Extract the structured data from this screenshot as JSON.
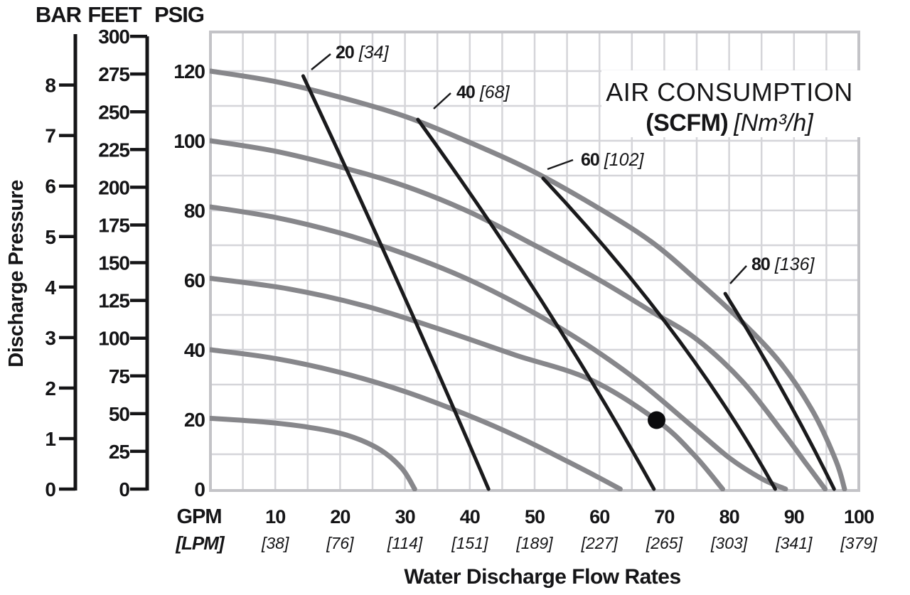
{
  "title": {
    "line1": "AIR CONSUMPTION",
    "line2_bold": "(SCFM)",
    "line2_italic": "[Nm³/h]"
  },
  "axes": {
    "y_title": "Discharge Pressure",
    "x_title": "Water Discharge Flow Rates",
    "x_unit_primary": "GPM",
    "x_unit_secondary": "[LPM]",
    "bar": {
      "label": "BAR",
      "ticks": [
        0,
        1,
        2,
        3,
        4,
        5,
        6,
        7,
        8
      ]
    },
    "feet": {
      "label": "FEET",
      "ticks": [
        0,
        25,
        50,
        75,
        100,
        125,
        150,
        175,
        200,
        225,
        250,
        275,
        300
      ]
    },
    "psig": {
      "label": "PSIG",
      "ticks": [
        0,
        20,
        40,
        60,
        80,
        100,
        120
      ]
    },
    "gpm_ticks": [
      {
        "gpm": "10",
        "lpm": "[38]"
      },
      {
        "gpm": "20",
        "lpm": "[76]"
      },
      {
        "gpm": "30",
        "lpm": "[114]"
      },
      {
        "gpm": "40",
        "lpm": "[151]"
      },
      {
        "gpm": "50",
        "lpm": "[189]"
      },
      {
        "gpm": "60",
        "lpm": "[227]"
      },
      {
        "gpm": "70",
        "lpm": "[265]"
      },
      {
        "gpm": "80",
        "lpm": "[303]"
      },
      {
        "gpm": "90",
        "lpm": "[341]"
      },
      {
        "gpm": "100",
        "lpm": "[379]"
      }
    ]
  },
  "chart_data": {
    "type": "line",
    "xlabel": "Water Discharge Flow Rates (GPM [LPM])",
    "ylabel": "Discharge Pressure (PSIG / FEET / BAR)",
    "x_range_gpm": [
      0,
      100
    ],
    "y_range_psig": [
      0,
      131
    ],
    "grid": {
      "x_step_gpm": 5,
      "y_step_psig": 10
    },
    "pump_curves": [
      {
        "name": "120 PSIG curve",
        "shutoff_psig": 120,
        "points": [
          [
            0,
            120
          ],
          [
            10,
            117
          ],
          [
            20,
            112.5
          ],
          [
            30,
            107
          ],
          [
            40,
            99.5
          ],
          [
            50,
            91
          ],
          [
            60,
            80.5
          ],
          [
            68,
            71
          ],
          [
            75,
            60
          ],
          [
            82,
            48
          ],
          [
            88,
            36
          ],
          [
            93,
            22
          ],
          [
            96.5,
            8
          ],
          [
            97.8,
            0
          ]
        ]
      },
      {
        "name": "100 PSIG curve",
        "shutoff_psig": 100,
        "points": [
          [
            0,
            100
          ],
          [
            10,
            97
          ],
          [
            20,
            92.5
          ],
          [
            30,
            87
          ],
          [
            40,
            79.5
          ],
          [
            50,
            70
          ],
          [
            60,
            60
          ],
          [
            68,
            51
          ],
          [
            75,
            43
          ],
          [
            82,
            31
          ],
          [
            88,
            17
          ],
          [
            92,
            7
          ],
          [
            94.8,
            0
          ]
        ]
      },
      {
        "name": "80 PSIG curve",
        "shutoff_psig": 80,
        "points": [
          [
            0,
            81
          ],
          [
            10,
            78
          ],
          [
            20,
            73.5
          ],
          [
            30,
            67.5
          ],
          [
            40,
            60
          ],
          [
            50,
            50.5
          ],
          [
            58,
            41.5
          ],
          [
            66,
            31
          ],
          [
            74,
            18.5
          ],
          [
            80,
            9
          ],
          [
            85,
            3
          ],
          [
            88.7,
            0
          ]
        ]
      },
      {
        "name": "60 PSIG curve",
        "shutoff_psig": 60,
        "points": [
          [
            0,
            60.5
          ],
          [
            12,
            57.5
          ],
          [
            24,
            52.5
          ],
          [
            36,
            45.5
          ],
          [
            47,
            38.5
          ],
          [
            58.5,
            31.5
          ],
          [
            68.8,
            19.8
          ],
          [
            74.5,
            10
          ],
          [
            79,
            0
          ]
        ]
      },
      {
        "name": "40 PSIG curve",
        "shutoff_psig": 40,
        "points": [
          [
            0,
            40
          ],
          [
            10,
            37.5
          ],
          [
            20,
            33.5
          ],
          [
            30,
            28
          ],
          [
            40,
            21
          ],
          [
            48,
            14.5
          ],
          [
            55,
            8
          ],
          [
            60,
            3.2
          ],
          [
            63.2,
            0
          ]
        ]
      },
      {
        "name": "20 PSIG curve",
        "shutoff_psig": 20,
        "points": [
          [
            0,
            20.3
          ],
          [
            8,
            19.3
          ],
          [
            15,
            17.8
          ],
          [
            21,
            15.5
          ],
          [
            26,
            11.5
          ],
          [
            29.5,
            6
          ],
          [
            31.5,
            0
          ]
        ]
      }
    ],
    "air_lines": [
      {
        "scfm": "20",
        "nm3h": "[34]",
        "p1": [
          14.3,
          118.6
        ],
        "p2": [
          42.9,
          0
        ]
      },
      {
        "scfm": "40",
        "nm3h": "[68]",
        "p1": [
          32.0,
          106.1
        ],
        "p2": [
          68.4,
          0
        ]
      },
      {
        "scfm": "60",
        "nm3h": "[102]",
        "p1": [
          51.3,
          89.2
        ],
        "p2": [
          87.1,
          0
        ]
      },
      {
        "scfm": "80",
        "nm3h": "[136]",
        "p1": [
          79.4,
          56.1
        ],
        "p2": [
          96.2,
          0
        ]
      }
    ],
    "operating_point": {
      "gpm": 68.8,
      "psig": 19.8
    }
  },
  "colors": {
    "text": "#151517",
    "grid": "#d5d5d9",
    "border": "#c3c3c7",
    "pump_curve": "#87878b",
    "air_line": "#1a1a1c",
    "dot": "#0b0b0d"
  }
}
